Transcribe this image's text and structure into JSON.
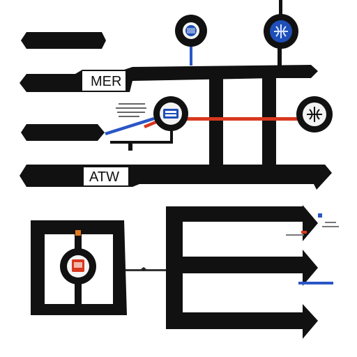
{
  "labels": {
    "mer": "MER",
    "atw": "ATW"
  },
  "colors": {
    "line": "#111111",
    "background": "#ffffff",
    "label_panel": "#ffffff",
    "red_line": "#d9381e",
    "blue_line": "#2a56c6",
    "icon_accent": "#1e4fb8",
    "icon_red": "#d9381e",
    "icon_orange": "#e07b1a"
  },
  "icons": [
    "lock-node-icon",
    "globe-node-icon",
    "server-node-icon",
    "globe-node-icon",
    "display-node-icon"
  ]
}
